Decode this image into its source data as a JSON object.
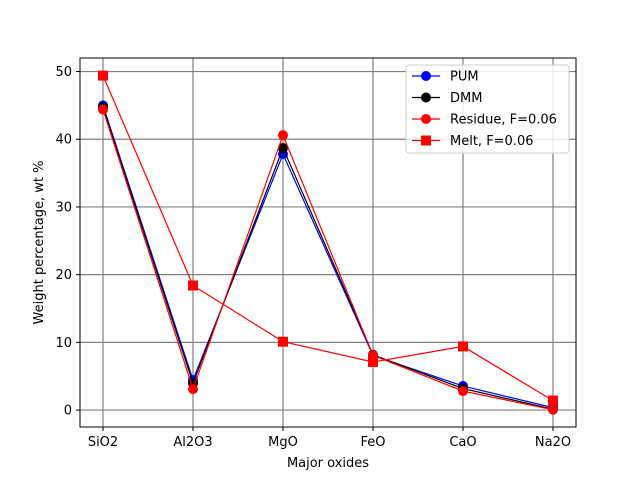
{
  "chart_data": {
    "type": "line",
    "title": "",
    "xlabel": "Major oxides",
    "ylabel": "Weight percentage, wt %",
    "categories": [
      "SiO2",
      "Al2O3",
      "MgO",
      "FeO",
      "CaO",
      "Na2O"
    ],
    "ylim": [
      -2.5,
      52
    ],
    "yticks": [
      0,
      10,
      20,
      30,
      40,
      50
    ],
    "grid": true,
    "legend_position": "top-right",
    "series": [
      {
        "name": "PUM",
        "color": "#0000ff",
        "marker": "circle",
        "values": [
          45.0,
          4.45,
          37.8,
          8.05,
          3.55,
          0.36
        ]
      },
      {
        "name": "DMM",
        "color": "#000000",
        "marker": "circle",
        "values": [
          44.7,
          3.98,
          38.7,
          8.18,
          3.17,
          0.13
        ]
      },
      {
        "name": "Residue, F=0.06",
        "color": "#ff0000",
        "marker": "circle",
        "values": [
          44.4,
          3.1,
          40.6,
          8.1,
          2.8,
          0.05
        ]
      },
      {
        "name": "Melt, F=0.06",
        "color": "#ff0000",
        "marker": "square",
        "values": [
          49.4,
          18.4,
          10.1,
          7.1,
          9.4,
          1.4
        ]
      }
    ]
  }
}
